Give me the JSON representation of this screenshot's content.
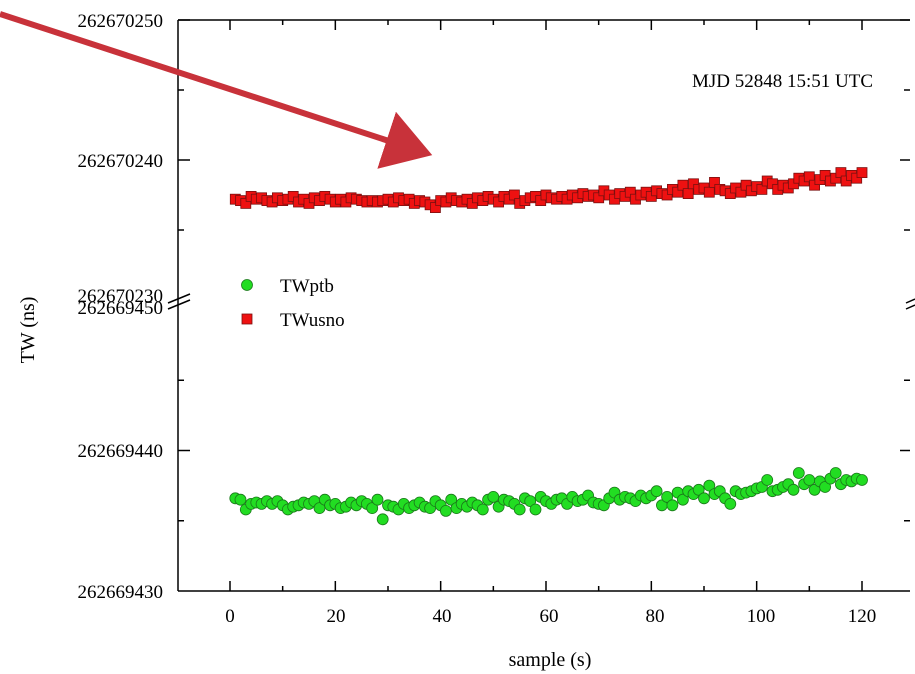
{
  "chart_data": {
    "type": "scatter",
    "title": "",
    "xlabel": "sample (s)",
    "ylabel": "TW (ns)",
    "annotation": "MJD 52848 15:51 UTC",
    "xlim": [
      -10,
      125
    ],
    "x_ticks": [
      "0",
      "20",
      "40",
      "60",
      "80",
      "100",
      "120"
    ],
    "broken_y_axis": true,
    "y_upper": {
      "range": [
        262670230,
        262670250
      ],
      "tick_labels": [
        "262670250",
        "262670240",
        "262670230"
      ]
    },
    "y_lower": {
      "range": [
        262669430,
        262669450
      ],
      "tick_labels": [
        "262669450",
        "262669440",
        "262669430"
      ]
    },
    "legend_placement": "center-left",
    "series": [
      {
        "name": "TWptb",
        "color": "#22dd22",
        "marker": "circle",
        "axis": "lower",
        "x": [
          1,
          2,
          3,
          4,
          5,
          6,
          7,
          8,
          9,
          10,
          11,
          12,
          13,
          14,
          15,
          16,
          17,
          18,
          19,
          20,
          21,
          22,
          23,
          24,
          25,
          26,
          27,
          28,
          29,
          30,
          31,
          32,
          33,
          34,
          35,
          36,
          37,
          38,
          39,
          40,
          41,
          42,
          43,
          44,
          45,
          46,
          47,
          48,
          49,
          50,
          51,
          52,
          53,
          54,
          55,
          56,
          57,
          58,
          59,
          60,
          61,
          62,
          63,
          64,
          65,
          66,
          67,
          68,
          69,
          70,
          71,
          72,
          73,
          74,
          75,
          76,
          77,
          78,
          79,
          80,
          81,
          82,
          83,
          84,
          85,
          86,
          87,
          88,
          89,
          90,
          91,
          92,
          93,
          94,
          95,
          96,
          97,
          98,
          99,
          100,
          101,
          102,
          103,
          104,
          105,
          106,
          107,
          108,
          109,
          110,
          111,
          112,
          113,
          114,
          115,
          116,
          117,
          118,
          119,
          120
        ],
        "y": [
          262669436.6,
          262669436.5,
          262669435.8,
          262669436.2,
          262669436.3,
          262669436.2,
          262669436.4,
          262669436.2,
          262669436.4,
          262669436.1,
          262669435.8,
          262669436,
          262669436.1,
          262669436.3,
          262669436.2,
          262669436.4,
          262669435.9,
          262669436.5,
          262669436.1,
          262669436.2,
          262669435.9,
          262669436,
          262669436.3,
          262669436.1,
          262669436.4,
          262669436.2,
          262669435.9,
          262669436.5,
          262669435.1,
          262669436.1,
          262669436,
          262669435.8,
          262669436.2,
          262669435.9,
          262669436.1,
          262669436.3,
          262669436,
          262669435.9,
          262669436.4,
          262669436.1,
          262669435.7,
          262669436.5,
          262669435.9,
          262669436.2,
          262669436,
          262669436.3,
          262669436.1,
          262669435.8,
          262669436.5,
          262669436.7,
          262669436,
          262669436.5,
          262669436.4,
          262669436.2,
          262669435.8,
          262669436.6,
          262669436.4,
          262669435.8,
          262669436.7,
          262669436.4,
          262669436.2,
          262669436.5,
          262669436.6,
          262669436.2,
          262669436.7,
          262669436.4,
          262669436.5,
          262669436.8,
          262669436.3,
          262669436.2,
          262669436.1,
          262669436.6,
          262669437,
          262669436.5,
          262669436.7,
          262669436.6,
          262669436.4,
          262669436.8,
          262669436.6,
          262669436.8,
          262669437.1,
          262669436.1,
          262669436.7,
          262669436.1,
          262669437,
          262669436.5,
          262669437.1,
          262669436.9,
          262669437.2,
          262669436.6,
          262669437.5,
          262669436.9,
          262669437.1,
          262669436.6,
          262669436.2,
          262669437.1,
          262669436.9,
          262669437,
          262669437.1,
          262669437.3,
          262669437.4,
          262669437.9,
          262669437.1,
          262669437.2,
          262669437.4,
          262669437.6,
          262669437.2,
          262669438.4,
          262669437.6,
          262669437.9,
          262669437.2,
          262669437.8,
          262669437.4,
          262669438,
          262669438.4,
          262669437.6,
          262669437.9,
          262669437.8,
          262669438,
          262669437.9
        ]
      },
      {
        "name": "TWusno",
        "color": "#ee1111",
        "marker": "square",
        "axis": "upper",
        "x": [
          1,
          2,
          3,
          4,
          5,
          6,
          7,
          8,
          9,
          10,
          11,
          12,
          13,
          14,
          15,
          16,
          17,
          18,
          19,
          20,
          21,
          22,
          23,
          24,
          25,
          26,
          27,
          28,
          29,
          30,
          31,
          32,
          33,
          34,
          35,
          36,
          37,
          38,
          39,
          40,
          41,
          42,
          43,
          44,
          45,
          46,
          47,
          48,
          49,
          50,
          51,
          52,
          53,
          54,
          55,
          56,
          57,
          58,
          59,
          60,
          61,
          62,
          63,
          64,
          65,
          66,
          67,
          68,
          69,
          70,
          71,
          72,
          73,
          74,
          75,
          76,
          77,
          78,
          79,
          80,
          81,
          82,
          83,
          84,
          85,
          86,
          87,
          88,
          89,
          90,
          91,
          92,
          93,
          94,
          95,
          96,
          97,
          98,
          99,
          100,
          101,
          102,
          103,
          104,
          105,
          106,
          107,
          108,
          109,
          110,
          111,
          112,
          113,
          114,
          115,
          116,
          117,
          118,
          119,
          120
        ],
        "y": [
          262670237.2,
          262670237.1,
          262670236.9,
          262670237.4,
          262670237.2,
          262670237.3,
          262670237.1,
          262670237,
          262670237.3,
          262670237.1,
          262670237.2,
          262670237.4,
          262670237,
          262670237.2,
          262670236.9,
          262670237.3,
          262670237.1,
          262670237.4,
          262670237.2,
          262670237,
          262670237.2,
          262670237,
          262670237.3,
          262670237.2,
          262670237.1,
          262670237,
          262670237.1,
          262670237,
          262670237.1,
          262670237.2,
          262670237,
          262670237.3,
          262670237.1,
          262670237.2,
          262670236.9,
          262670237.1,
          262670237,
          262670236.8,
          262670236.6,
          262670237.1,
          262670237,
          262670237.3,
          262670237.1,
          262670237,
          262670237.2,
          262670236.9,
          262670237.3,
          262670237.1,
          262670237.4,
          262670237.2,
          262670237,
          262670237.4,
          262670237.2,
          262670237.5,
          262670236.9,
          262670237.1,
          262670237.3,
          262670237.4,
          262670237.1,
          262670237.5,
          262670237.3,
          262670237.2,
          262670237.4,
          262670237.2,
          262670237.5,
          262670237.3,
          262670237.6,
          262670237.4,
          262670237.5,
          262670237.3,
          262670237.8,
          262670237.5,
          262670237.2,
          262670237.6,
          262670237.4,
          262670237.7,
          262670237.2,
          262670237.5,
          262670237.7,
          262670237.4,
          262670237.8,
          262670237.6,
          262670237.5,
          262670237.9,
          262670237.7,
          262670238.2,
          262670237.6,
          262670238.3,
          262670237.9,
          262670238,
          262670237.7,
          262670238.4,
          262670237.9,
          262670237.8,
          262670237.6,
          262670238,
          262670237.7,
          262670238.2,
          262670237.8,
          262670238.1,
          262670237.9,
          262670238.5,
          262670238.3,
          262670237.9,
          262670238.2,
          262670238,
          262670238.3,
          262670238.7,
          262670238.5,
          262670238.8,
          262670238.2,
          262670238.6,
          262670238.9,
          262670238.5,
          262670238.7,
          262670239.1,
          262670238.5,
          262670238.9,
          262670238.7,
          262670239.1
        ]
      }
    ]
  }
}
